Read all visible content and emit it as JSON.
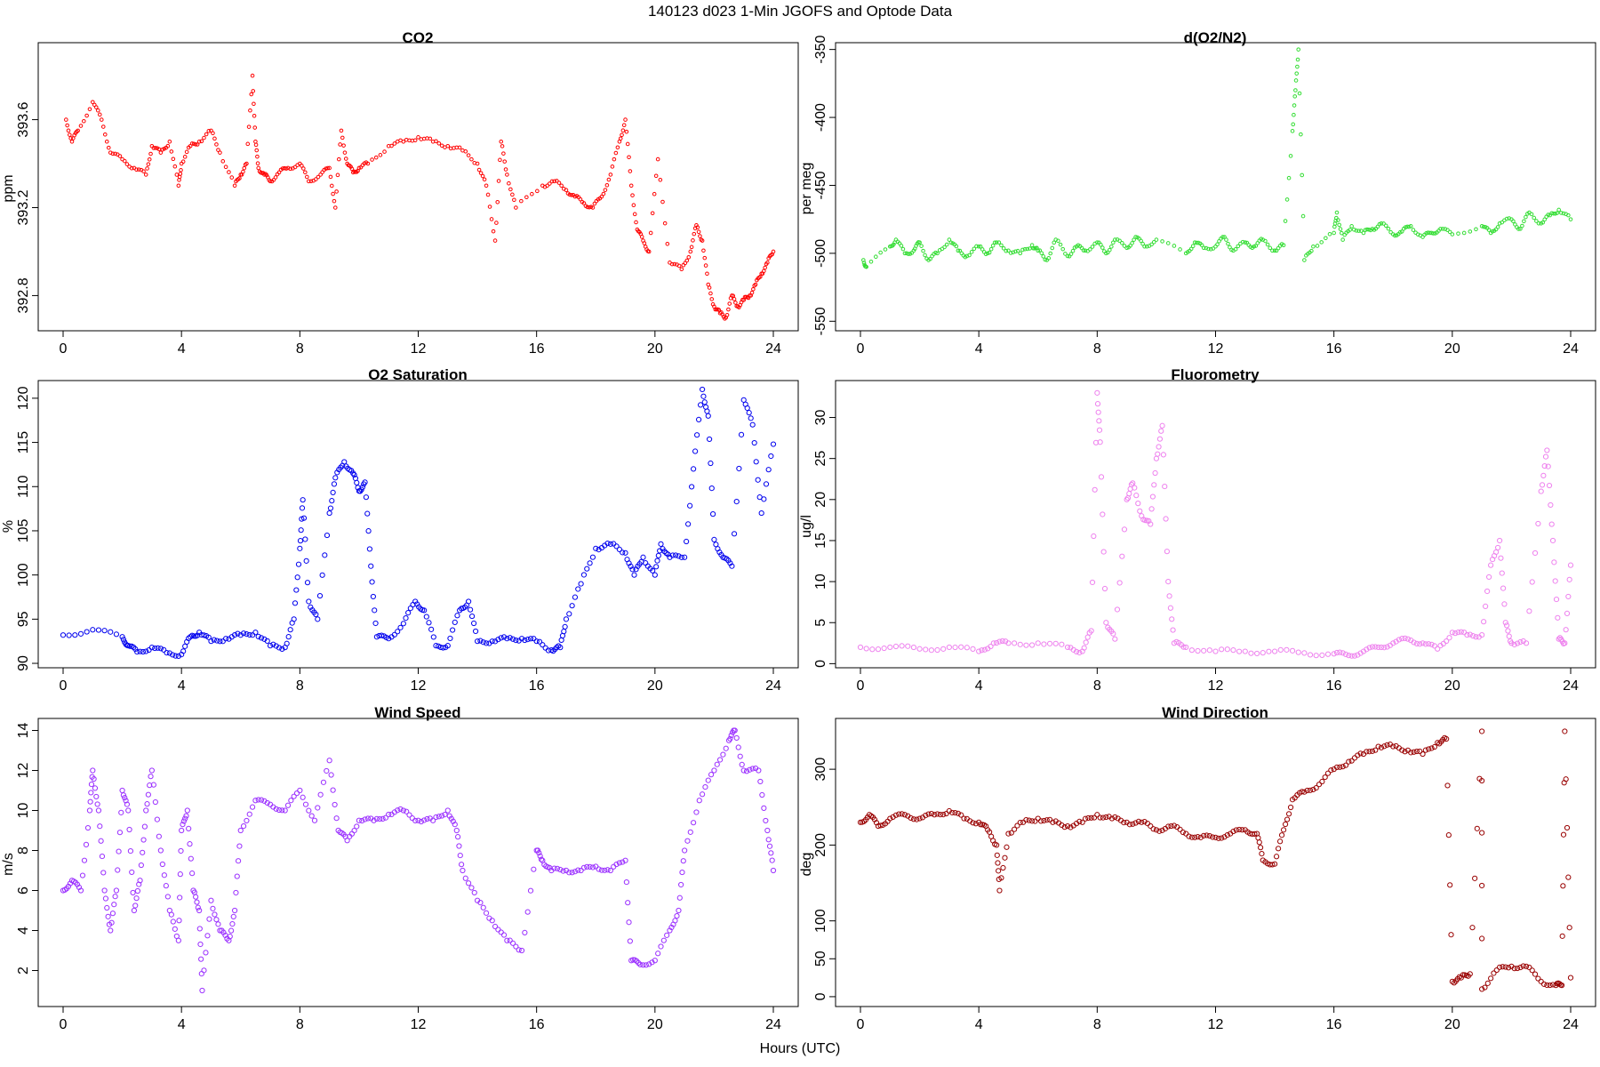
{
  "figure": {
    "title": "140123   d023   1-Min  JGOFS and Optode Data",
    "xlabel": "Hours (UTC)"
  },
  "chart_data": [
    {
      "id": "co2",
      "type": "scatter",
      "title": "CO2",
      "xlabel": "",
      "ylabel": "ppm",
      "color": "#ff0000",
      "xlim": [
        0,
        24
      ],
      "xticks": [
        0,
        4,
        8,
        12,
        16,
        20,
        24
      ],
      "ylim": [
        392.64,
        393.95
      ],
      "yticks": [
        392.8,
        393.2,
        393.6
      ],
      "ytick_labels": [
        "392.8",
        "393.2",
        "393.6"
      ],
      "ytick_rotate": true,
      "marker_r": 1.8,
      "series": [
        {
          "name": "CO2",
          "x": [
            0.1,
            0.3,
            0.5,
            1.0,
            1.3,
            1.6,
            2.0,
            2.4,
            2.8,
            3.0,
            3.3,
            3.6,
            3.9,
            4.0,
            4.3,
            4.6,
            5.0,
            5.3,
            5.8,
            6.0,
            6.2,
            6.4,
            6.5,
            6.6,
            6.8,
            7.0,
            7.3,
            7.6,
            8.0,
            8.3,
            8.7,
            9.0,
            9.2,
            9.4,
            9.6,
            9.8,
            10.0,
            10.3,
            11.0,
            11.5,
            12.0,
            12.5,
            13.0,
            13.5,
            14.0,
            14.3,
            14.6,
            14.8,
            15.0,
            15.3,
            16.2,
            16.6,
            17.0,
            17.3,
            17.6,
            17.9,
            18.2,
            18.5,
            18.8,
            19.0,
            19.2,
            19.4,
            19.6,
            19.8,
            20.1,
            20.5,
            20.9,
            21.2,
            21.4,
            21.6,
            21.8,
            22.0,
            22.2,
            22.4,
            22.6,
            22.8,
            23.0,
            23.2,
            23.4,
            23.6,
            23.8,
            24.0
          ],
          "y": [
            393.6,
            393.5,
            393.55,
            393.68,
            393.6,
            393.45,
            393.42,
            393.38,
            393.35,
            393.48,
            393.45,
            393.5,
            393.3,
            393.4,
            393.48,
            393.5,
            393.55,
            393.45,
            393.3,
            393.35,
            393.4,
            393.8,
            393.5,
            393.38,
            393.35,
            393.32,
            393.36,
            393.38,
            393.4,
            393.32,
            393.35,
            393.38,
            393.2,
            393.55,
            393.4,
            393.36,
            393.38,
            393.4,
            393.48,
            393.5,
            393.52,
            393.5,
            393.48,
            393.46,
            393.4,
            393.3,
            393.05,
            393.5,
            393.35,
            393.2,
            393.3,
            393.32,
            393.28,
            393.25,
            393.22,
            393.2,
            393.25,
            393.35,
            393.5,
            393.6,
            393.3,
            393.1,
            393.05,
            393.0,
            393.42,
            392.95,
            392.92,
            393.0,
            393.12,
            393.05,
            392.85,
            392.75,
            392.72,
            392.7,
            392.8,
            392.75,
            392.78,
            392.8,
            392.85,
            392.9,
            392.95,
            393.0
          ]
        }
      ]
    },
    {
      "id": "do2n2",
      "type": "scatter",
      "title": "d(O2/N2)",
      "xlabel": "",
      "ylabel": "per meg",
      "color": "#33dd33",
      "xlim": [
        0,
        24
      ],
      "xticks": [
        0,
        4,
        8,
        12,
        16,
        20,
        24
      ],
      "ylim": [
        -557,
        -345
      ],
      "yticks": [
        -550,
        -500,
        -450,
        -400,
        -350
      ],
      "ytick_labels": [
        "-550",
        "-500",
        "-450",
        "-400",
        "-350"
      ],
      "ytick_rotate": true,
      "marker_r": 1.8,
      "series": [
        {
          "name": "d(O2/N2)",
          "x": [
            0.1,
            0.2,
            1.0,
            1.2,
            1.5,
            1.8,
            2.0,
            2.3,
            2.6,
            3.0,
            3.3,
            3.6,
            4.0,
            4.3,
            4.6,
            5.0,
            5.4,
            5.8,
            6.0,
            6.3,
            6.6,
            7.0,
            7.3,
            7.6,
            8.0,
            8.3,
            8.6,
            9.0,
            9.3,
            9.6,
            10.0,
            11.0,
            11.3,
            11.6,
            12.0,
            12.3,
            12.6,
            13.0,
            13.3,
            13.6,
            14.0,
            14.3,
            14.6,
            14.7,
            14.8,
            15.0,
            15.3,
            16.0,
            16.1,
            16.3,
            16.6,
            17.0,
            17.3,
            17.6,
            18.0,
            18.3,
            18.6,
            19.0,
            19.3,
            19.6,
            20.0,
            21.0,
            21.3,
            21.6,
            22.0,
            22.3,
            22.6,
            23.0,
            23.3,
            23.6,
            24.0
          ],
          "y": [
            -505,
            -510,
            -495,
            -490,
            -500,
            -498,
            -492,
            -505,
            -500,
            -490,
            -498,
            -502,
            -495,
            -500,
            -492,
            -498,
            -500,
            -494,
            -498,
            -505,
            -490,
            -502,
            -495,
            -498,
            -492,
            -500,
            -490,
            -496,
            -488,
            -495,
            -490,
            -500,
            -492,
            -496,
            -495,
            -488,
            -498,
            -492,
            -495,
            -490,
            -498,
            -494,
            -410,
            -380,
            -350,
            -505,
            -495,
            -485,
            -470,
            -490,
            -480,
            -485,
            -482,
            -478,
            -486,
            -484,
            -480,
            -488,
            -485,
            -482,
            -486,
            -480,
            -485,
            -478,
            -475,
            -482,
            -470,
            -478,
            -472,
            -468,
            -475
          ]
        }
      ]
    },
    {
      "id": "o2sat",
      "type": "scatter",
      "title": "O2 Saturation",
      "xlabel": "",
      "ylabel": "%",
      "color": "#0000ee",
      "xlim": [
        0,
        24
      ],
      "xticks": [
        0,
        4,
        8,
        12,
        16,
        20,
        24
      ],
      "ylim": [
        89.5,
        122
      ],
      "yticks": [
        90,
        95,
        100,
        105,
        110,
        115,
        120
      ],
      "ytick_labels": [
        "90",
        "95",
        "100",
        "105",
        "110",
        "115",
        "120"
      ],
      "ytick_rotate": true,
      "marker_r": 2.6,
      "series": [
        {
          "name": "O2 Saturation",
          "x": [
            0.0,
            1.0,
            2.0,
            2.2,
            2.5,
            3.0,
            3.5,
            4.0,
            4.3,
            4.6,
            5.0,
            5.5,
            6.0,
            6.5,
            7.0,
            7.5,
            7.8,
            8.0,
            8.1,
            8.3,
            8.6,
            9.0,
            9.2,
            9.5,
            9.8,
            10.0,
            10.2,
            10.4,
            10.6,
            11.0,
            11.5,
            11.9,
            12.2,
            12.6,
            13.0,
            13.4,
            13.7,
            14.0,
            14.5,
            15.0,
            15.5,
            16.0,
            16.5,
            16.8,
            17.0,
            17.5,
            18.0,
            18.5,
            19.0,
            19.3,
            19.6,
            20.0,
            20.2,
            20.5,
            21.0,
            21.3,
            21.6,
            21.8,
            22.0,
            22.3,
            22.6,
            23.0,
            23.3,
            23.6,
            24.0
          ],
          "y": [
            93.2,
            93.8,
            93.0,
            92.0,
            91.3,
            91.8,
            91.2,
            91.0,
            93.0,
            93.5,
            92.5,
            92.8,
            93.2,
            93.5,
            92.0,
            91.8,
            95.0,
            103.0,
            108.5,
            97.0,
            95.0,
            107.0,
            111.0,
            112.8,
            111.5,
            109.5,
            110.5,
            101.0,
            93.0,
            92.8,
            94.5,
            97.0,
            96.0,
            92.0,
            92.0,
            96.0,
            97.0,
            92.5,
            92.5,
            92.8,
            92.8,
            92.5,
            91.5,
            91.8,
            95.0,
            99.0,
            103.0,
            103.5,
            102.5,
            100.0,
            102.0,
            100.0,
            103.5,
            102.0,
            102.0,
            112.0,
            121.0,
            118.0,
            104.0,
            102.0,
            101.0,
            119.8,
            117.0,
            107.0,
            114.8
          ]
        }
      ]
    },
    {
      "id": "fluor",
      "type": "scatter",
      "title": "Fluorometry",
      "xlabel": "",
      "ylabel": "ug/l",
      "color": "#ee82ee",
      "xlim": [
        0,
        24
      ],
      "xticks": [
        0,
        4,
        8,
        12,
        16,
        20,
        24
      ],
      "ylim": [
        -0.5,
        34.5
      ],
      "yticks": [
        0,
        5,
        10,
        15,
        20,
        25,
        30
      ],
      "ytick_labels": [
        "0",
        "5",
        "10",
        "15",
        "20",
        "25",
        "30"
      ],
      "ytick_rotate": true,
      "marker_r": 2.6,
      "series": [
        {
          "name": "Fluorometry",
          "x": [
            0.0,
            1.0,
            2.0,
            3.0,
            4.0,
            4.5,
            5.0,
            6.0,
            7.0,
            7.5,
            7.8,
            8.0,
            8.1,
            8.3,
            8.6,
            9.0,
            9.2,
            9.5,
            9.8,
            10.0,
            10.2,
            10.4,
            10.6,
            11.0,
            12.0,
            13.0,
            14.0,
            15.0,
            16.0,
            16.5,
            17.0,
            17.5,
            18.0,
            18.5,
            19.0,
            19.5,
            20.0,
            20.5,
            21.0,
            21.3,
            21.6,
            21.8,
            22.0,
            22.5,
            23.0,
            23.2,
            23.4,
            23.6,
            23.8,
            24.0
          ],
          "y": [
            2.0,
            2.0,
            1.8,
            2.0,
            1.5,
            2.5,
            2.5,
            2.5,
            2.0,
            1.5,
            4.0,
            33.0,
            27.0,
            5.0,
            3.0,
            20.0,
            22.0,
            18.0,
            17.0,
            25.0,
            29.0,
            10.0,
            2.5,
            2.0,
            1.5,
            1.5,
            1.5,
            1.3,
            1.2,
            1.0,
            1.5,
            2.0,
            2.5,
            3.0,
            2.5,
            1.8,
            3.8,
            3.5,
            3.5,
            12.0,
            15.0,
            5.0,
            2.5,
            2.5,
            21.0,
            26.0,
            15.0,
            3.0,
            2.5,
            12.0
          ]
        }
      ]
    },
    {
      "id": "wspd",
      "type": "scatter",
      "title": "Wind Speed",
      "xlabel": "",
      "ylabel": "m/s",
      "color": "#9b30ff",
      "xlim": [
        0,
        24
      ],
      "xticks": [
        0,
        4,
        8,
        12,
        16,
        20,
        24
      ],
      "ylim": [
        0.2,
        14.6
      ],
      "yticks": [
        2,
        4,
        6,
        8,
        10,
        12,
        14
      ],
      "ytick_labels": [
        "2",
        "4",
        "6",
        "8",
        "10",
        "12",
        "14"
      ],
      "ytick_rotate": true,
      "marker_r": 2.6,
      "series": [
        {
          "name": "Wind Speed",
          "x": [
            0.0,
            0.3,
            0.6,
            0.9,
            1.0,
            1.2,
            1.4,
            1.6,
            1.8,
            2.0,
            2.2,
            2.4,
            2.6,
            2.8,
            3.0,
            3.3,
            3.6,
            3.9,
            4.0,
            4.2,
            4.4,
            4.6,
            4.7,
            5.0,
            5.3,
            5.6,
            5.8,
            6.0,
            6.5,
            7.0,
            7.5,
            8.0,
            8.5,
            9.0,
            9.3,
            9.6,
            10.0,
            10.5,
            11.0,
            11.5,
            12.0,
            12.5,
            13.0,
            13.3,
            13.5,
            14.0,
            14.5,
            15.0,
            15.5,
            16.0,
            16.2,
            16.5,
            17.0,
            17.5,
            18.0,
            18.5,
            19.0,
            19.2,
            19.5,
            20.0,
            20.5,
            20.8,
            21.0,
            21.5,
            22.0,
            22.5,
            22.7,
            23.0,
            23.5,
            23.8,
            24.0
          ],
          "y": [
            6.0,
            6.5,
            6.0,
            10.0,
            12.0,
            10.0,
            6.0,
            4.0,
            6.0,
            11.0,
            10.0,
            5.0,
            6.5,
            10.0,
            12.0,
            8.0,
            5.0,
            3.5,
            9.0,
            10.0,
            6.0,
            5.0,
            1.0,
            5.5,
            4.0,
            3.5,
            5.0,
            9.0,
            10.5,
            10.3,
            10.0,
            11.0,
            9.5,
            12.5,
            9.0,
            8.5,
            9.5,
            9.5,
            9.8,
            10.0,
            9.5,
            9.5,
            10.0,
            9.0,
            7.0,
            5.5,
            4.5,
            3.5,
            3.0,
            8.0,
            7.5,
            7.0,
            7.0,
            7.0,
            7.2,
            7.0,
            7.5,
            2.5,
            2.3,
            2.5,
            4.0,
            5.0,
            8.0,
            10.5,
            12.0,
            13.5,
            14.0,
            12.0,
            12.0,
            9.0,
            7.0
          ]
        }
      ]
    },
    {
      "id": "wdir",
      "type": "scatter",
      "title": "Wind Direction",
      "xlabel": "",
      "ylabel": "deg",
      "color": "#990000",
      "xlim": [
        0,
        24
      ],
      "xticks": [
        0,
        4,
        8,
        12,
        16,
        20,
        24
      ],
      "ylim": [
        -13,
        367
      ],
      "yticks": [
        0,
        50,
        100,
        200,
        300
      ],
      "ytick_labels": [
        "0",
        "50",
        "100",
        "200",
        "300"
      ],
      "ytick_rotate": true,
      "marker_r": 2.6,
      "series": [
        {
          "name": "Wind Direction",
          "x": [
            0.0,
            0.3,
            0.6,
            1.0,
            1.5,
            2.0,
            2.5,
            3.0,
            3.5,
            4.0,
            4.3,
            4.6,
            4.7,
            5.0,
            5.5,
            6.0,
            6.5,
            7.0,
            7.5,
            8.0,
            8.5,
            9.0,
            9.5,
            10.0,
            10.5,
            11.0,
            11.5,
            12.0,
            12.5,
            13.0,
            13.4,
            13.6,
            14.0,
            14.3,
            14.6,
            15.0,
            15.5,
            16.0,
            16.5,
            17.0,
            17.5,
            18.0,
            18.5,
            19.0,
            19.5,
            19.8,
            20.0,
            20.3,
            20.6,
            21.0,
            21.0,
            21.5,
            22.0,
            22.5,
            23.0,
            23.5,
            23.7,
            23.8,
            24.0
          ],
          "y": [
            230,
            240,
            225,
            235,
            240,
            235,
            240,
            245,
            235,
            230,
            220,
            200,
            140,
            215,
            230,
            235,
            230,
            225,
            230,
            240,
            235,
            230,
            230,
            220,
            225,
            215,
            210,
            210,
            215,
            220,
            215,
            180,
            175,
            220,
            260,
            270,
            280,
            300,
            310,
            320,
            330,
            330,
            325,
            320,
            335,
            340,
            20,
            25,
            30,
            350,
            10,
            35,
            40,
            40,
            20,
            15,
            15,
            350,
            25
          ]
        }
      ]
    }
  ]
}
